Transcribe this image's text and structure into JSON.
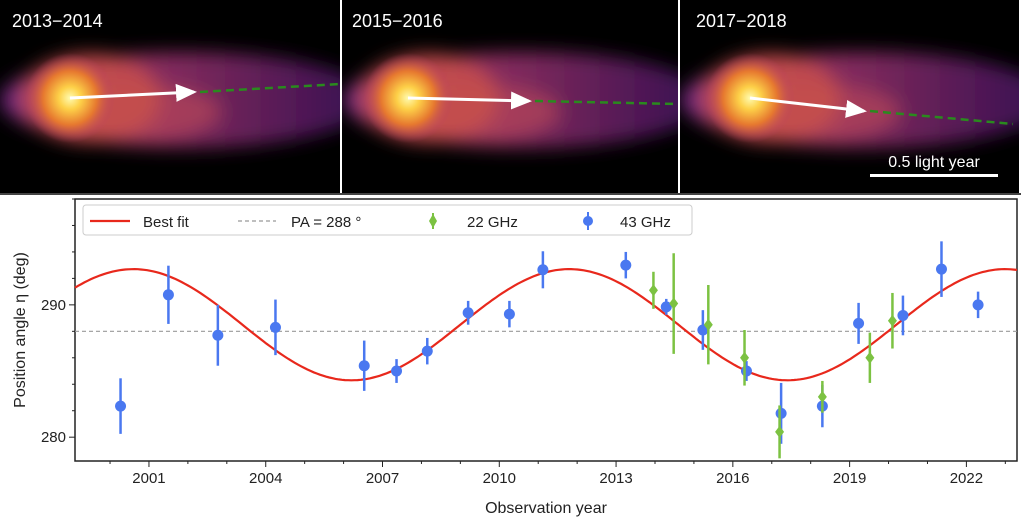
{
  "panels": [
    {
      "label": "2013−2014"
    },
    {
      "label": "2015−2016"
    },
    {
      "label": "2017−2018"
    }
  ],
  "scale_bar": {
    "label": "0.5 light year"
  },
  "colors": {
    "fit": "#e8281c",
    "pa": "#888888",
    "ghz22": "#7cc242",
    "ghz43": "#4a78f0",
    "arrow": "#ffffff",
    "jet_direction": "#2a8a1e"
  },
  "chart_data": {
    "type": "scatter",
    "xlabel": "Observation year",
    "ylabel": "Position angle η (deg)",
    "xlim": [
      1999.1,
      2023.3
    ],
    "ylim": [
      278.2,
      298.0
    ],
    "xticks": [
      2001,
      2004,
      2007,
      2010,
      2013,
      2016,
      2019,
      2022
    ],
    "yticks": [
      280,
      290
    ],
    "grid": false,
    "legend": {
      "placement": "top",
      "entries": [
        {
          "label": "Best fit",
          "marker": "line"
        },
        {
          "label": "PA = 288 °",
          "marker": "dashed"
        },
        {
          "label": "22 GHz",
          "marker": "diamond"
        },
        {
          "label": "43 GHz",
          "marker": "circle"
        }
      ]
    },
    "reference_line": {
      "name": "PA = 288 °",
      "y": 288
    },
    "best_fit": {
      "name": "Best fit",
      "mean": 288.5,
      "amplitude": 4.2,
      "period_years": 11.2,
      "peak_year": 2000.6
    },
    "series": [
      {
        "name": "43 GHz",
        "marker": "circle",
        "points": [
          {
            "x": 2000.27,
            "y": 282.35,
            "err": 2.1
          },
          {
            "x": 2001.5,
            "y": 290.76,
            "err": 2.2
          },
          {
            "x": 2002.77,
            "y": 287.7,
            "err": 2.3
          },
          {
            "x": 2004.25,
            "y": 288.3,
            "err": 2.1
          },
          {
            "x": 2006.53,
            "y": 285.4,
            "err": 1.9
          },
          {
            "x": 2007.36,
            "y": 285.0,
            "err": 0.9
          },
          {
            "x": 2008.15,
            "y": 286.5,
            "err": 1.0
          },
          {
            "x": 2009.2,
            "y": 289.4,
            "err": 0.9
          },
          {
            "x": 2010.26,
            "y": 289.3,
            "err": 1.0
          },
          {
            "x": 2011.12,
            "y": 292.65,
            "err": 1.4
          },
          {
            "x": 2013.25,
            "y": 293.0,
            "err": 1.0
          },
          {
            "x": 2014.29,
            "y": 289.85,
            "err": 0.6
          },
          {
            "x": 2015.23,
            "y": 288.1,
            "err": 1.5
          },
          {
            "x": 2016.35,
            "y": 285.0,
            "err": 0.75
          },
          {
            "x": 2017.24,
            "y": 281.8,
            "err": 2.3
          },
          {
            "x": 2018.3,
            "y": 282.35,
            "err": 1.6
          },
          {
            "x": 2019.23,
            "y": 288.6,
            "err": 1.55
          },
          {
            "x": 2020.37,
            "y": 289.2,
            "err": 1.5
          },
          {
            "x": 2021.36,
            "y": 292.7,
            "err": 2.1
          },
          {
            "x": 2022.3,
            "y": 290.0,
            "err": 1.0
          }
        ]
      },
      {
        "name": "22 GHz",
        "marker": "diamond",
        "points": [
          {
            "x": 2013.96,
            "y": 291.1,
            "err": 1.4
          },
          {
            "x": 2014.48,
            "y": 290.1,
            "err": 3.8
          },
          {
            "x": 2015.37,
            "y": 288.5,
            "err": 3.0
          },
          {
            "x": 2016.3,
            "y": 286.0,
            "err": 2.1
          },
          {
            "x": 2017.2,
            "y": 280.4,
            "err": 2.0
          },
          {
            "x": 2018.3,
            "y": 283.05,
            "err": 1.2
          },
          {
            "x": 2019.52,
            "y": 286.0,
            "err": 1.9
          },
          {
            "x": 2020.1,
            "y": 288.8,
            "err": 2.1
          }
        ]
      }
    ]
  }
}
